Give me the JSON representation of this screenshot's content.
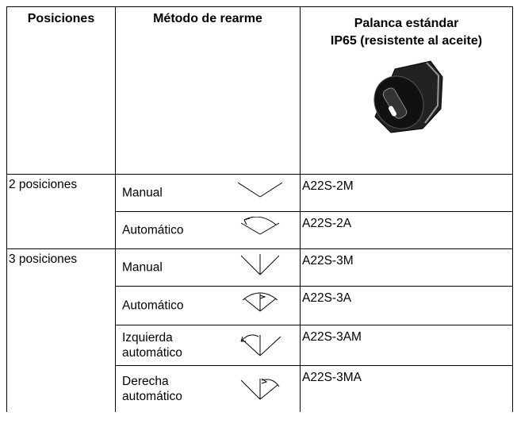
{
  "table": {
    "headers": [
      "Posiciones",
      "Método de rearme",
      [
        "Palanca estándar",
        "IP65 (resistente al aceite)"
      ]
    ],
    "groups": [
      {
        "position": "2 posiciones",
        "rows": [
          {
            "method": [
              "Manual"
            ],
            "model": "A22S-2M"
          },
          {
            "method": [
              "Automático"
            ],
            "model": "A22S-2A"
          }
        ]
      },
      {
        "position": "3 posiciones",
        "rows": [
          {
            "method": [
              "Manual"
            ],
            "model": "A22S-3M"
          },
          {
            "method": [
              "Automático"
            ],
            "model": "A22S-3A"
          },
          {
            "method": [
              "Izquierda",
              "automático"
            ],
            "model": "A22S-3AM"
          },
          {
            "method": [
              "Derecha",
              "automático"
            ],
            "model": "A22S-3MA"
          }
        ]
      }
    ]
  }
}
